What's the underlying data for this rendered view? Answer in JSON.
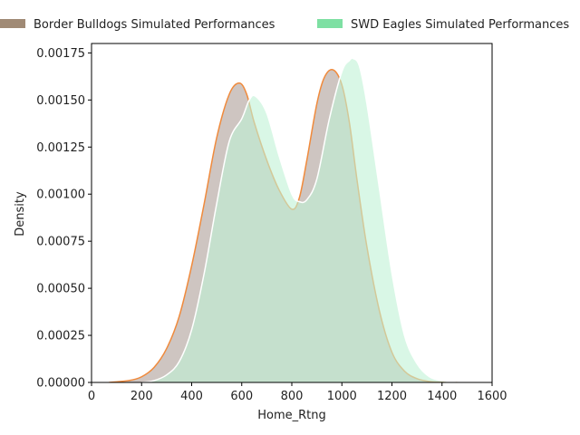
{
  "chart_data": {
    "type": "area",
    "xlabel": "Home_Rtng",
    "ylabel": "Density",
    "xlim": [
      0,
      1600
    ],
    "ylim": [
      0,
      0.0018
    ],
    "xticks": [
      "0",
      "200",
      "400",
      "600",
      "800",
      "1000",
      "1200",
      "1400",
      "1600"
    ],
    "xtick_values": [
      0,
      200,
      400,
      600,
      800,
      1000,
      1200,
      1400,
      1600
    ],
    "yticks": [
      "0.00000",
      "0.00025",
      "0.00050",
      "0.00075",
      "0.00100",
      "0.00125",
      "0.00150",
      "0.00175"
    ],
    "ytick_values": [
      0,
      0.00025,
      0.0005,
      0.00075,
      0.001,
      0.00125,
      0.0015,
      0.00175
    ],
    "grid": false,
    "legend_position": "top, outside",
    "series": [
      {
        "name": "Border Bulldogs Simulated Performances",
        "fill_color": "#c9bfba",
        "legend_color": "#a08a75",
        "line_color": "#f08a3c",
        "x": [
          70,
          150,
          200,
          250,
          300,
          350,
          400,
          450,
          500,
          550,
          590,
          620,
          650,
          700,
          750,
          800,
          830,
          860,
          900,
          930,
          965,
          1000,
          1030,
          1060,
          1100,
          1150,
          1200,
          1250,
          1300,
          1350,
          1400,
          1460
        ],
        "y": [
          0,
          1e-05,
          3e-05,
          8e-05,
          0.00018,
          0.00035,
          0.00062,
          0.00095,
          0.0013,
          0.00153,
          0.00159,
          0.00153,
          0.00138,
          0.00118,
          0.00102,
          0.00092,
          0.00098,
          0.00118,
          0.00148,
          0.00162,
          0.00166,
          0.00158,
          0.00138,
          0.00108,
          0.00072,
          0.00038,
          0.00016,
          6e-05,
          2e-05,
          5e-06,
          1e-06,
          0
        ]
      },
      {
        "name": "SWD Eagles Simulated Performances",
        "fill_color": "#bff2d6",
        "legend_color": "#7ee0a3",
        "line_color": "#ffffff",
        "x": [
          200,
          250,
          300,
          350,
          400,
          450,
          500,
          550,
          600,
          630,
          655,
          700,
          750,
          800,
          830,
          860,
          900,
          950,
          1000,
          1030,
          1045,
          1070,
          1100,
          1150,
          1200,
          1250,
          1300,
          1350,
          1400,
          1460
        ],
        "y": [
          0,
          1e-05,
          4e-05,
          0.00011,
          0.00028,
          0.00058,
          0.00095,
          0.00128,
          0.0014,
          0.0015,
          0.00152,
          0.00143,
          0.0012,
          0.001,
          0.00096,
          0.00097,
          0.00108,
          0.0014,
          0.00165,
          0.00171,
          0.00172,
          0.00168,
          0.00148,
          0.00103,
          0.00058,
          0.00025,
          0.0001,
          3e-05,
          1e-05,
          0
        ]
      }
    ]
  }
}
